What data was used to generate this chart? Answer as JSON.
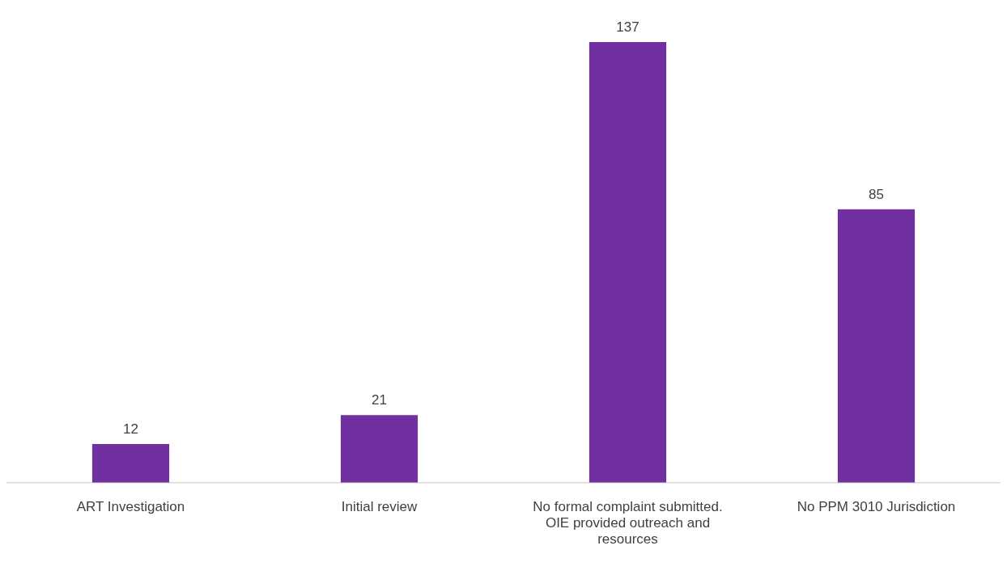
{
  "chart_data": {
    "type": "bar",
    "categories": [
      "ART Investigation",
      "Initial review",
      "No formal complaint submitted. OIE provided outreach and resources",
      "No PPM 3010 Jurisdiction"
    ],
    "values": [
      12,
      21,
      137,
      85
    ],
    "color": "#7030a0",
    "data_labels": true,
    "grid": false,
    "legend": false
  }
}
